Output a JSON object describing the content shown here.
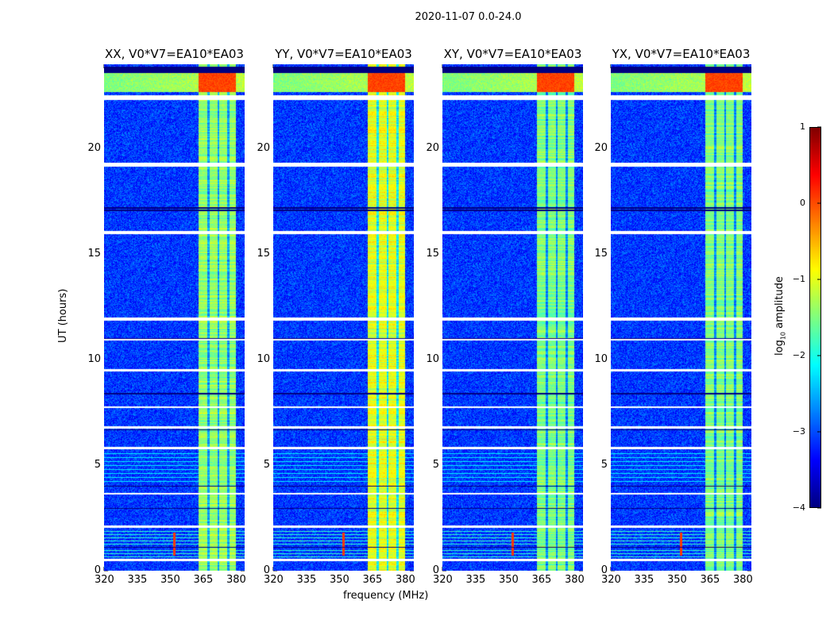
{
  "chart_data": {
    "type": "heatmap",
    "title": "2020-11-07 0.0-24.0",
    "xlabel": "frequency (MHz)",
    "ylabel": "UT (hours)",
    "xlim": [
      320,
      384
    ],
    "ylim": [
      0,
      24
    ],
    "xticks": [
      "320",
      "335",
      "350",
      "365",
      "380"
    ],
    "xtick_values": [
      320,
      335,
      350,
      365,
      380
    ],
    "yticks": [
      "0",
      "5",
      "10",
      "15",
      "20"
    ],
    "ytick_values": [
      0,
      5,
      10,
      15,
      20
    ],
    "panels": [
      {
        "title": "XX, V0*V7=EA10*EA03",
        "band_level": -1.4
      },
      {
        "title": "YY, V0*V7=EA10*EA03",
        "band_level": -1.0
      },
      {
        "title": "XY, V0*V7=EA10*EA03",
        "band_level": -1.5
      },
      {
        "title": "YX, V0*V7=EA10*EA03",
        "band_level": -1.5
      }
    ],
    "band_mhz": [
      363,
      380
    ],
    "subband_edges_mhz": [
      367.5,
      372,
      376.5
    ],
    "rfi_line_mhz": 352,
    "flagged_hours": [
      [
        22.3,
        22.55
      ],
      [
        19.15,
        19.35
      ],
      [
        15.95,
        16.1
      ],
      [
        11.85,
        12.0
      ],
      [
        10.9,
        11.0
      ],
      [
        9.45,
        9.55
      ],
      [
        7.7,
        7.8
      ],
      [
        6.75,
        6.85
      ],
      [
        5.75,
        5.85
      ],
      [
        3.6,
        3.7
      ],
      [
        2.05,
        2.15
      ],
      [
        0.45,
        0.55
      ]
    ],
    "dark_hours": [
      [
        23.6,
        23.9
      ],
      [
        17.15,
        17.22
      ],
      [
        17.05,
        17.1
      ],
      [
        10.98,
        11.02
      ],
      [
        8.35,
        8.42
      ],
      [
        6.65,
        6.7
      ],
      [
        3.97,
        4.03
      ],
      [
        2.92,
        2.98
      ],
      [
        1.08,
        1.12
      ]
    ],
    "colorbar": {
      "label": "log10 amplitude",
      "label_main": "log",
      "label_sub": "10",
      "label_rest": " amplitude",
      "range": [
        -4,
        1
      ],
      "ticks": [
        "1",
        "0",
        "−1",
        "−2",
        "−3",
        "−4"
      ],
      "tick_values": [
        1,
        0,
        -1,
        -2,
        -3,
        -4
      ],
      "colormap": "jet"
    }
  }
}
